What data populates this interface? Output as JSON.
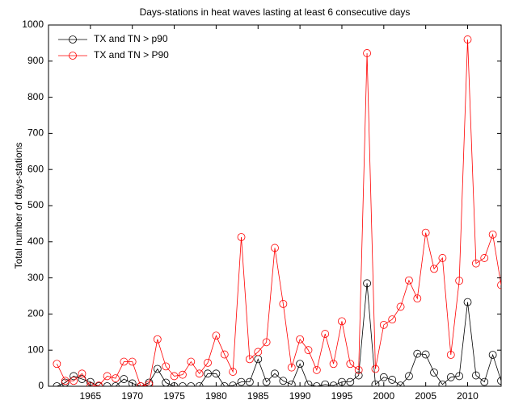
{
  "chart_data": {
    "type": "line",
    "title": "Days-stations in heat waves lasting at least 6 consecutive days",
    "y_label": "Total number of days-stations",
    "x": [
      1961,
      1962,
      1963,
      1964,
      1965,
      1966,
      1967,
      1968,
      1969,
      1970,
      1971,
      1972,
      1973,
      1974,
      1975,
      1976,
      1977,
      1978,
      1979,
      1980,
      1981,
      1982,
      1983,
      1984,
      1985,
      1986,
      1987,
      1988,
      1989,
      1990,
      1991,
      1992,
      1993,
      1994,
      1995,
      1996,
      1997,
      1998,
      1999,
      2000,
      2001,
      2002,
      2003,
      2004,
      2005,
      2006,
      2007,
      2008,
      2009,
      2010,
      2011,
      2012,
      2013,
      2014
    ],
    "series": [
      {
        "name": "TX and TN > p90",
        "color": "#000000",
        "values": [
          0,
          10,
          28,
          20,
          12,
          0,
          0,
          0,
          20,
          8,
          0,
          10,
          48,
          10,
          0,
          0,
          0,
          0,
          35,
          35,
          0,
          2,
          12,
          12,
          75,
          12,
          35,
          15,
          5,
          62,
          5,
          0,
          5,
          2,
          12,
          12,
          30,
          285,
          5,
          25,
          18,
          2,
          28,
          90,
          88,
          38,
          5,
          25,
          28,
          233,
          30,
          12,
          87,
          15
        ]
      },
      {
        "name": "TX and TN > P90",
        "color": "#ff0000",
        "values": [
          62,
          15,
          15,
          35,
          0,
          2,
          28,
          22,
          68,
          68,
          0,
          5,
          130,
          55,
          28,
          32,
          68,
          35,
          65,
          140,
          88,
          40,
          413,
          75,
          95,
          122,
          383,
          228,
          52,
          130,
          100,
          45,
          145,
          62,
          180,
          62,
          45,
          922,
          48,
          170,
          185,
          220,
          293,
          243,
          425,
          325,
          355,
          87,
          292,
          960,
          340,
          355,
          420,
          280
        ]
      }
    ],
    "xlim": [
      1960,
      2014
    ],
    "xticks": [
      1965,
      1970,
      1975,
      1980,
      1985,
      1990,
      1995,
      2000,
      2005,
      2010
    ],
    "ylim": [
      0,
      1000
    ],
    "yticks": [
      0,
      100,
      200,
      300,
      400,
      500,
      600,
      700,
      800,
      900,
      1000
    ],
    "grid": false,
    "legend": "upper left"
  }
}
